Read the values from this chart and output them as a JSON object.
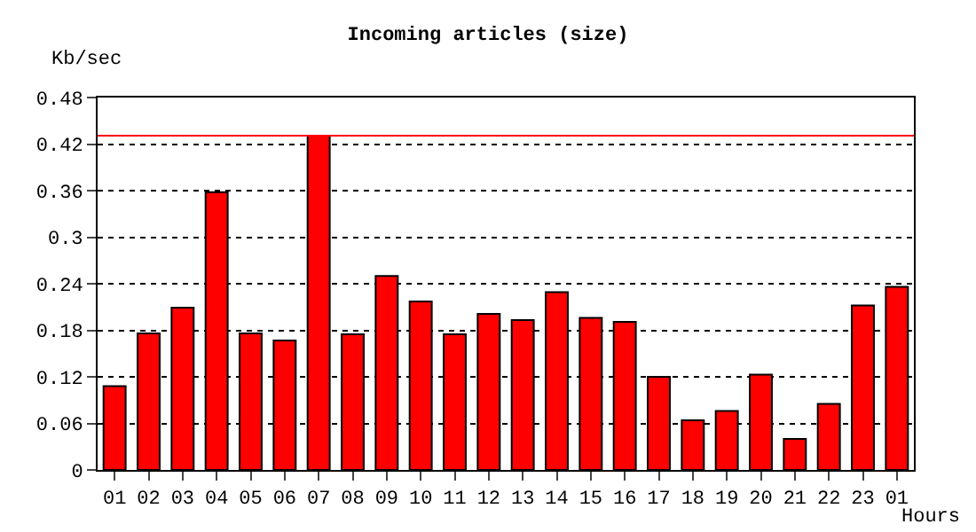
{
  "chart_data": {
    "type": "bar",
    "title": "Incoming articles (size)",
    "xlabel": "Hours",
    "ylabel": "Kb/sec",
    "categories": [
      "01",
      "02",
      "03",
      "04",
      "05",
      "06",
      "07",
      "08",
      "09",
      "10",
      "11",
      "12",
      "13",
      "14",
      "15",
      "16",
      "17",
      "18",
      "19",
      "20",
      "21",
      "22",
      "23",
      "01"
    ],
    "values": [
      0.108,
      0.176,
      0.209,
      0.358,
      0.176,
      0.167,
      0.431,
      0.175,
      0.25,
      0.217,
      0.175,
      0.201,
      0.193,
      0.229,
      0.196,
      0.191,
      0.12,
      0.064,
      0.076,
      0.123,
      0.04,
      0.085,
      0.212,
      0.236
    ],
    "color": "#ff0000",
    "ylim": [
      0,
      0.48
    ],
    "yticks": [
      0,
      0.06,
      0.12,
      0.18,
      0.24,
      0.3,
      0.36,
      0.42,
      0.48
    ],
    "grid": "y",
    "ref_lines": [
      {
        "axis": "y",
        "value": 0.431,
        "color": "#ff0000",
        "line_style": "solid"
      }
    ]
  }
}
